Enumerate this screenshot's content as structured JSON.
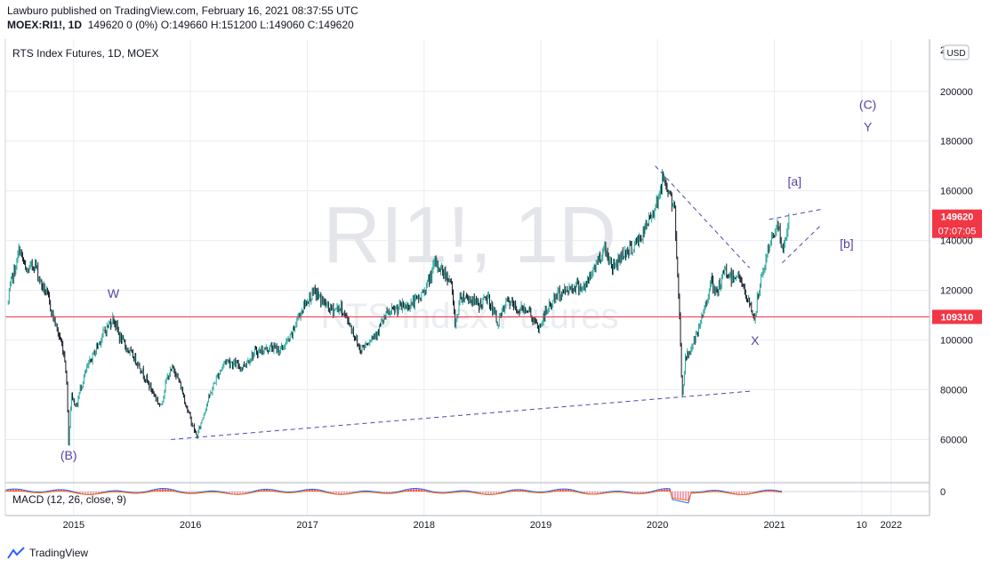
{
  "header": {
    "publish_line": "Lawburo published on TradingView.com, February 16, 2021 08:37:55 UTC",
    "symbol": "MOEX:RI1!, 1D",
    "quote": "149620 0 (0%)",
    "o_label": "O:",
    "o": "149660",
    "h_label": "H:",
    "h": "151200",
    "l_label": "L:",
    "l": "149060",
    "c_label": "C:",
    "c": "149620"
  },
  "footer": {
    "brand": "TradingView"
  },
  "chart_data": {
    "type": "candlestick",
    "title": "RTS Index Futures, 1D, MOEX",
    "watermark": "RI1!, 1D",
    "watermark_sub": "RTS Index Futures",
    "currency": "USD",
    "x_ticks": [
      "2015",
      "2016",
      "2017",
      "2018",
      "2019",
      "2020",
      "2021",
      "10",
      "2022"
    ],
    "y_ticks": [
      60000,
      80000,
      100000,
      120000,
      140000,
      160000,
      180000,
      200000
    ],
    "y_top_partial": "2",
    "ylim": [
      43000,
      221000
    ],
    "price_path": [
      [
        "2014-06-10",
        115000
      ],
      [
        "2014-06-20",
        124000
      ],
      [
        "2014-07-05",
        130000
      ],
      [
        "2014-07-15",
        137000
      ],
      [
        "2014-08-05",
        127000
      ],
      [
        "2014-09-01",
        131000
      ],
      [
        "2014-09-20",
        123000
      ],
      [
        "2014-10-10",
        118000
      ],
      [
        "2014-10-25",
        111000
      ],
      [
        "2014-11-10",
        104000
      ],
      [
        "2014-11-25",
        98000
      ],
      [
        "2014-12-05",
        92000
      ],
      [
        "2014-12-12",
        78000
      ],
      [
        "2014-12-16",
        58000
      ],
      [
        "2014-12-24",
        78000
      ],
      [
        "2015-01-10",
        73000
      ],
      [
        "2015-01-20",
        80000
      ],
      [
        "2015-02-10",
        88000
      ],
      [
        "2015-03-10",
        96000
      ],
      [
        "2015-04-05",
        103000
      ],
      [
        "2015-05-05",
        109000
      ],
      [
        "2015-05-25",
        101000
      ],
      [
        "2015-06-20",
        96000
      ],
      [
        "2015-07-20",
        91000
      ],
      [
        "2015-08-20",
        83000
      ],
      [
        "2015-09-10",
        78000
      ],
      [
        "2015-09-30",
        73000
      ],
      [
        "2015-10-20",
        85000
      ],
      [
        "2015-11-10",
        89000
      ],
      [
        "2015-12-05",
        80000
      ],
      [
        "2015-12-25",
        71000
      ],
      [
        "2016-01-15",
        63000
      ],
      [
        "2016-01-21",
        61000
      ],
      [
        "2016-02-20",
        74000
      ],
      [
        "2016-03-20",
        84000
      ],
      [
        "2016-04-20",
        92000
      ],
      [
        "2016-06-10",
        89000
      ],
      [
        "2016-07-20",
        95000
      ],
      [
        "2016-09-10",
        97000
      ],
      [
        "2016-10-10",
        96000
      ],
      [
        "2016-11-10",
        101000
      ],
      [
        "2016-12-05",
        110000
      ],
      [
        "2017-01-05",
        117000
      ],
      [
        "2017-01-25",
        119000
      ],
      [
        "2017-02-15",
        116000
      ],
      [
        "2017-03-15",
        112000
      ],
      [
        "2017-04-15",
        113000
      ],
      [
        "2017-05-15",
        106000
      ],
      [
        "2017-06-15",
        96000
      ],
      [
        "2017-07-05",
        99000
      ],
      [
        "2017-08-05",
        103000
      ],
      [
        "2017-09-05",
        110000
      ],
      [
        "2017-10-15",
        113000
      ],
      [
        "2017-11-15",
        114000
      ],
      [
        "2017-12-20",
        117000
      ],
      [
        "2018-01-20",
        125000
      ],
      [
        "2018-02-05",
        131000
      ],
      [
        "2018-03-05",
        127000
      ],
      [
        "2018-03-25",
        124000
      ],
      [
        "2018-04-09",
        106000
      ],
      [
        "2018-04-25",
        118000
      ],
      [
        "2018-05-20",
        117000
      ],
      [
        "2018-06-20",
        114000
      ],
      [
        "2018-07-20",
        117000
      ],
      [
        "2018-08-20",
        107000
      ],
      [
        "2018-09-20",
        116000
      ],
      [
        "2018-10-20",
        112000
      ],
      [
        "2018-11-20",
        113000
      ],
      [
        "2018-12-24",
        104000
      ],
      [
        "2019-01-20",
        112000
      ],
      [
        "2019-02-20",
        118000
      ],
      [
        "2019-03-20",
        120000
      ],
      [
        "2019-04-20",
        122000
      ],
      [
        "2019-05-20",
        121000
      ],
      [
        "2019-06-20",
        130000
      ],
      [
        "2019-07-20",
        137000
      ],
      [
        "2019-08-15",
        129000
      ],
      [
        "2019-09-15",
        135000
      ],
      [
        "2019-10-15",
        137000
      ],
      [
        "2019-11-15",
        142000
      ],
      [
        "2019-12-15",
        151000
      ],
      [
        "2020-01-10",
        160000
      ],
      [
        "2020-01-20",
        166000
      ],
      [
        "2020-02-10",
        158000
      ],
      [
        "2020-02-24",
        151000
      ],
      [
        "2020-03-01",
        133000
      ],
      [
        "2020-03-09",
        115000
      ],
      [
        "2020-03-18",
        77000
      ],
      [
        "2020-03-28",
        92000
      ],
      [
        "2020-04-15",
        97000
      ],
      [
        "2020-05-05",
        102000
      ],
      [
        "2020-06-01",
        115000
      ],
      [
        "2020-06-15",
        124000
      ],
      [
        "2020-07-01",
        118000
      ],
      [
        "2020-08-01",
        128000
      ],
      [
        "2020-08-20",
        125000
      ],
      [
        "2020-09-10",
        127000
      ],
      [
        "2020-10-01",
        118000
      ],
      [
        "2020-10-20",
        113000
      ],
      [
        "2020-11-01",
        108000
      ],
      [
        "2020-11-10",
        118000
      ],
      [
        "2020-12-01",
        130000
      ],
      [
        "2020-12-20",
        140000
      ],
      [
        "2021-01-10",
        147000
      ],
      [
        "2021-01-29",
        135000
      ],
      [
        "2021-02-16",
        149620
      ]
    ],
    "horizontal_line": {
      "value": 109310,
      "label": "109310",
      "color": "#f23645"
    },
    "last_price": {
      "value": 149620,
      "label": "149620",
      "countdown": "07:07:05",
      "color": "#f23645"
    },
    "trendlines": [
      {
        "from": [
          "2015-11-01",
          60000
        ],
        "to": [
          "2020-10-25",
          79500
        ]
      },
      {
        "from": [
          "2019-12-25",
          170000
        ],
        "to": [
          "2020-10-15",
          129000
        ]
      },
      {
        "from": [
          "2020-12-15",
          148500
        ],
        "to": [
          "2021-05-25",
          152500
        ]
      },
      {
        "from": [
          "2021-01-25",
          131000
        ],
        "to": [
          "2021-05-25",
          146000
        ]
      }
    ],
    "annotations": [
      {
        "text": "W",
        "x": "2015-05-05",
        "y": 117000
      },
      {
        "text": "(B)",
        "x": "2014-12-16",
        "y": 52000
      },
      {
        "text": "X",
        "x": "2020-11-01",
        "y": 98000
      },
      {
        "text": "[a]",
        "x": "2021-03-05",
        "y": 162000
      },
      {
        "text": "[b]",
        "x": "2021-08-15",
        "y": 137000
      },
      {
        "text": "(C)",
        "x": "2021-10-20",
        "y": 193000
      },
      {
        "text": "Y",
        "x": "2021-10-20",
        "y": 184000
      }
    ],
    "indicator": {
      "label": "MACD (12, 26, close, 9)",
      "zero_label": "0"
    },
    "colors": {
      "up": "#26a69a",
      "down": "#131722",
      "annotation": "#5b3fa6",
      "trend": "#4a4aaa",
      "grid": "#e9ecf2"
    }
  }
}
